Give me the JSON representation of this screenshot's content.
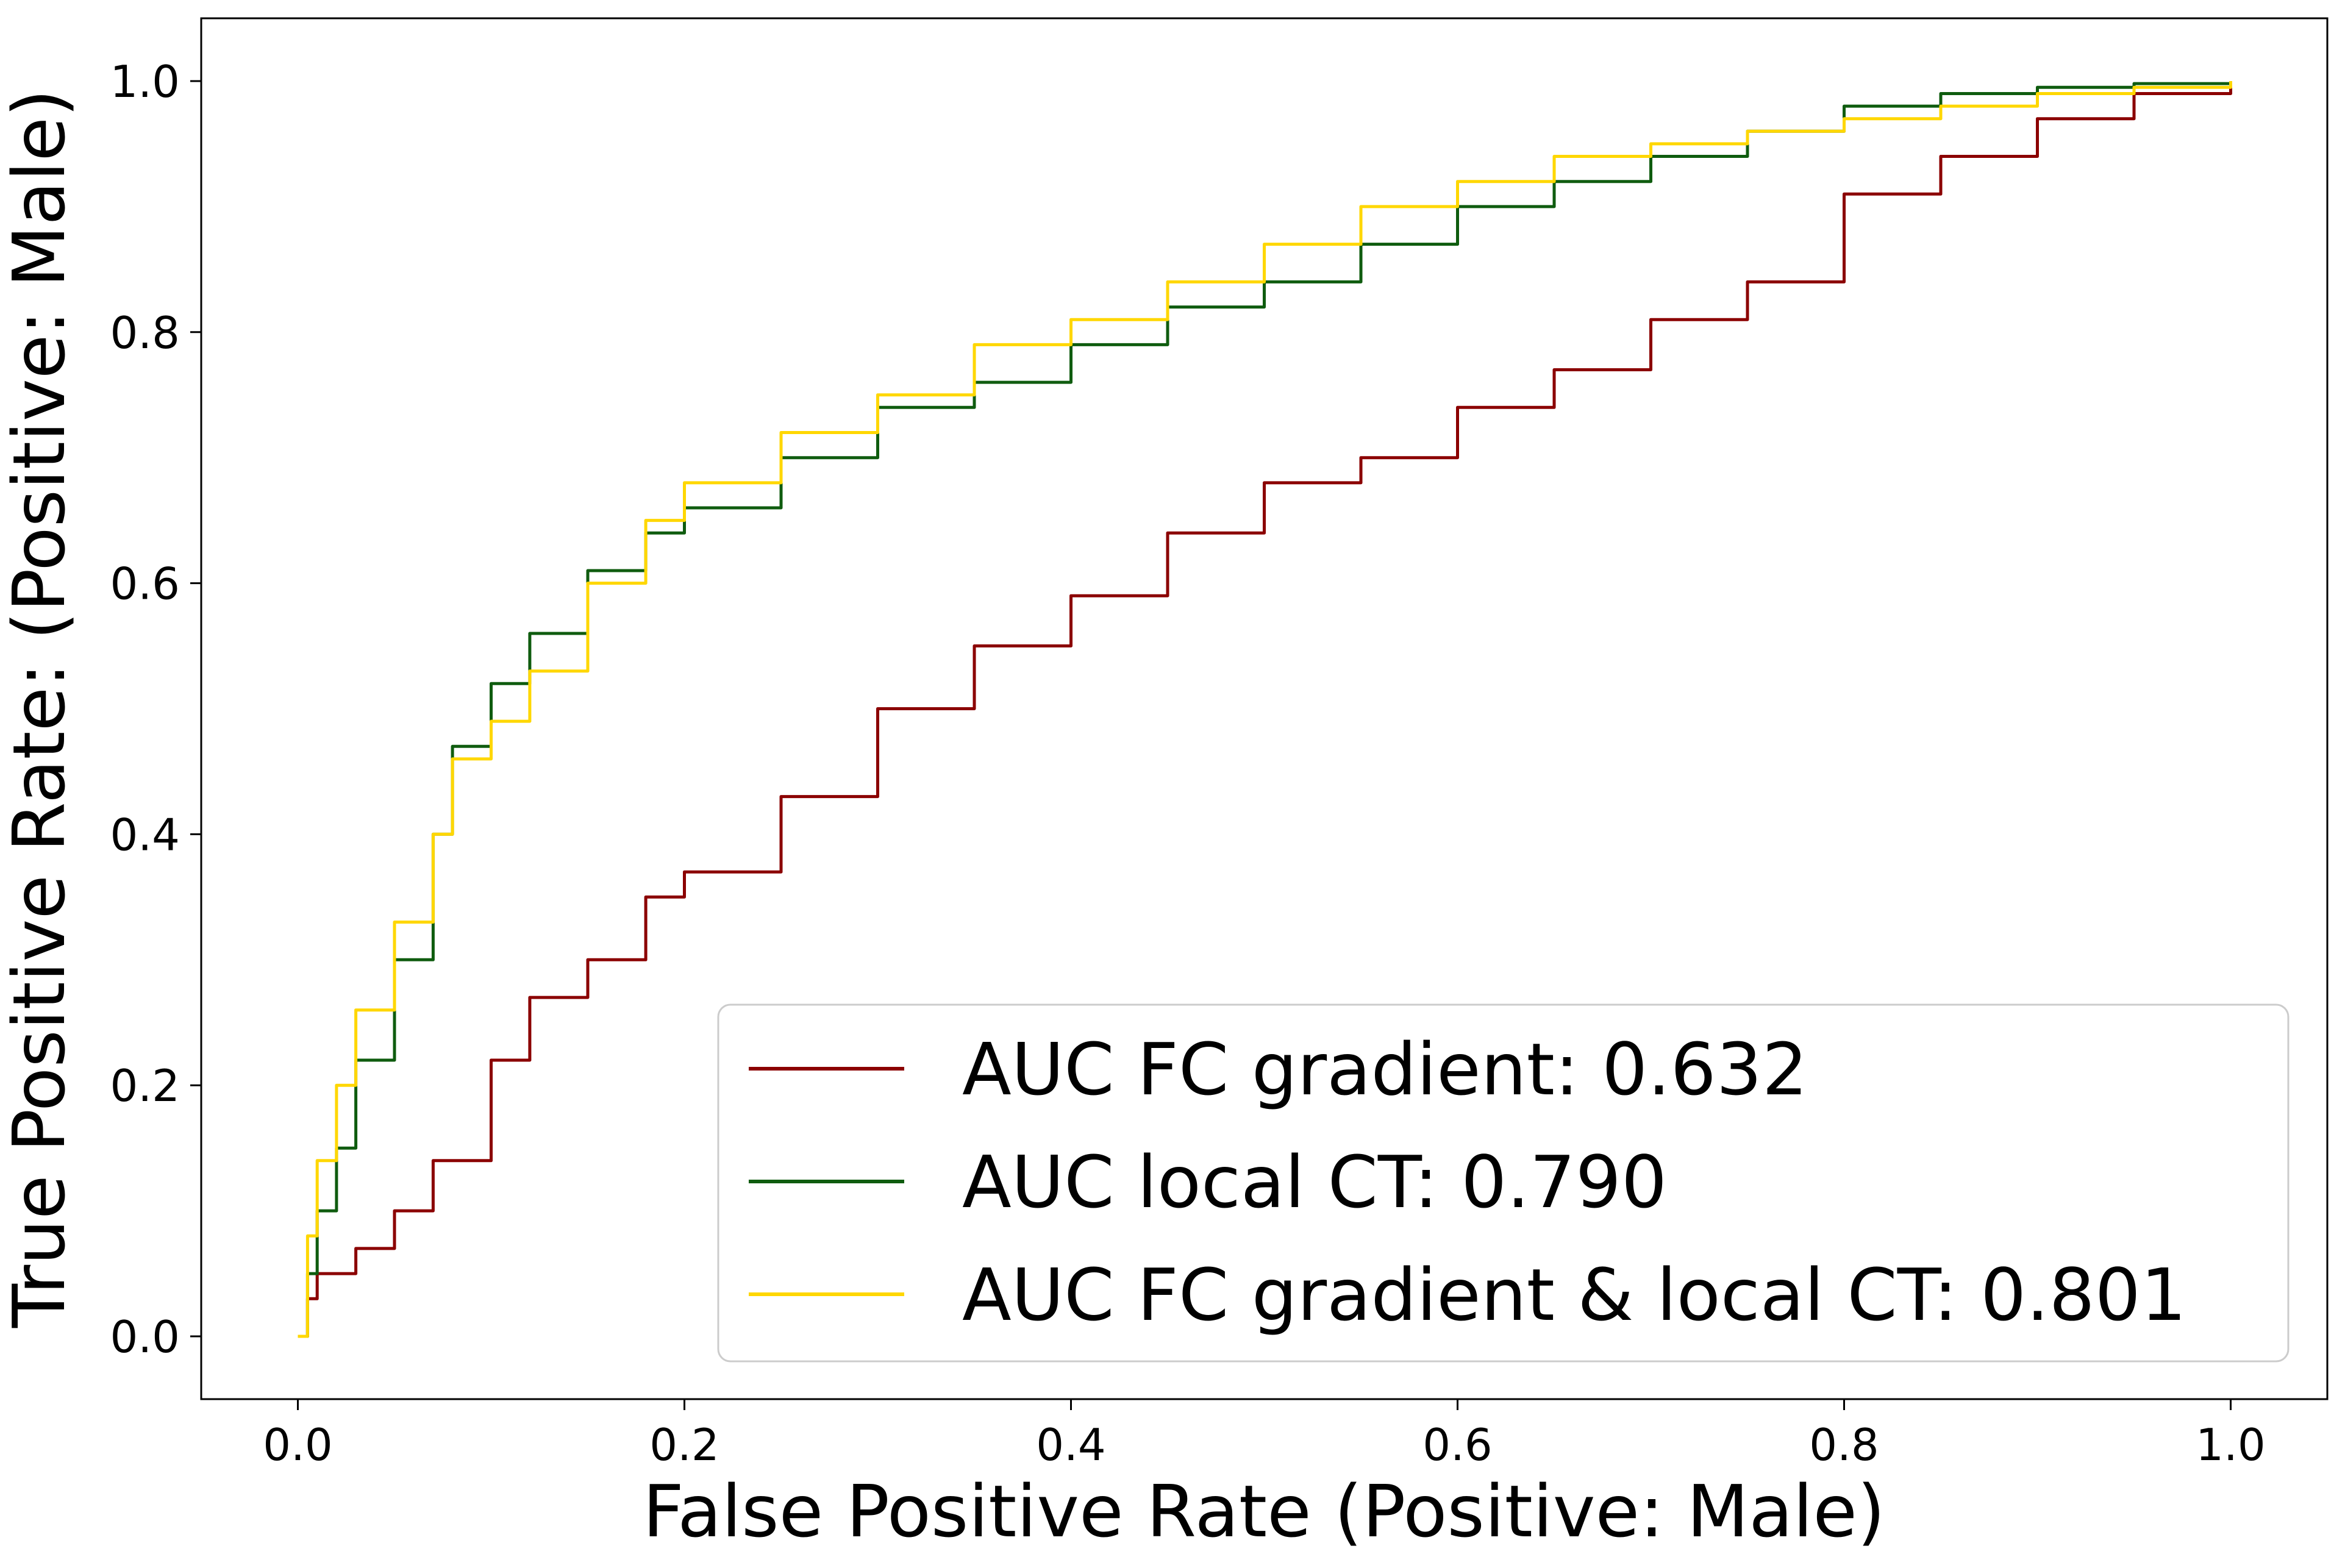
{
  "chart_data": {
    "type": "line",
    "title": "",
    "xlabel": "False Positive Rate (Positive: Male)",
    "ylabel": "True Positive Rate: (Positive: Male)",
    "xlim": [
      -0.05,
      1.05
    ],
    "ylim": [
      -0.05,
      1.05
    ],
    "x_ticks": [
      0.0,
      0.2,
      0.4,
      0.6,
      0.8,
      1.0
    ],
    "y_ticks": [
      0.0,
      0.2,
      0.4,
      0.6,
      0.8,
      1.0
    ],
    "x_tick_labels": [
      "0.0",
      "0.2",
      "0.4",
      "0.6",
      "0.8",
      "1.0"
    ],
    "y_tick_labels": [
      "0.0",
      "0.2",
      "0.4",
      "0.6",
      "0.8",
      "1.0"
    ],
    "grid": false,
    "legend_position": "lower-right",
    "series": [
      {
        "name": "AUC FC gradient: 0.632",
        "color": "#8b0000",
        "x": [
          0.0,
          0.005,
          0.01,
          0.03,
          0.05,
          0.07,
          0.1,
          0.12,
          0.15,
          0.18,
          0.2,
          0.25,
          0.3,
          0.35,
          0.4,
          0.45,
          0.5,
          0.55,
          0.6,
          0.65,
          0.7,
          0.75,
          0.8,
          0.85,
          0.9,
          0.95,
          1.0
        ],
        "y": [
          0.0,
          0.03,
          0.05,
          0.07,
          0.1,
          0.14,
          0.22,
          0.27,
          0.3,
          0.35,
          0.37,
          0.43,
          0.5,
          0.55,
          0.59,
          0.64,
          0.68,
          0.7,
          0.74,
          0.77,
          0.81,
          0.84,
          0.91,
          0.94,
          0.97,
          0.99,
          1.0
        ]
      },
      {
        "name": "AUC local CT: 0.790",
        "color": "#0f5c0f",
        "x": [
          0.0,
          0.005,
          0.01,
          0.02,
          0.03,
          0.05,
          0.07,
          0.08,
          0.1,
          0.12,
          0.15,
          0.18,
          0.2,
          0.25,
          0.3,
          0.35,
          0.4,
          0.45,
          0.5,
          0.55,
          0.6,
          0.65,
          0.7,
          0.75,
          0.8,
          0.85,
          0.9,
          0.95,
          1.0
        ],
        "y": [
          0.0,
          0.05,
          0.1,
          0.15,
          0.22,
          0.3,
          0.4,
          0.47,
          0.52,
          0.56,
          0.61,
          0.64,
          0.66,
          0.7,
          0.74,
          0.76,
          0.79,
          0.82,
          0.84,
          0.87,
          0.9,
          0.92,
          0.94,
          0.96,
          0.98,
          0.99,
          0.995,
          0.998,
          1.0
        ]
      },
      {
        "name": "AUC FC gradient & local CT: 0.801",
        "color": "#ffd700",
        "x": [
          0.0,
          0.005,
          0.01,
          0.02,
          0.03,
          0.05,
          0.07,
          0.08,
          0.1,
          0.12,
          0.15,
          0.18,
          0.2,
          0.25,
          0.3,
          0.35,
          0.4,
          0.45,
          0.5,
          0.55,
          0.6,
          0.65,
          0.7,
          0.75,
          0.8,
          0.85,
          0.9,
          0.95,
          1.0
        ],
        "y": [
          0.0,
          0.08,
          0.14,
          0.2,
          0.26,
          0.33,
          0.4,
          0.46,
          0.49,
          0.53,
          0.6,
          0.65,
          0.68,
          0.72,
          0.75,
          0.79,
          0.81,
          0.84,
          0.87,
          0.9,
          0.92,
          0.94,
          0.95,
          0.96,
          0.97,
          0.98,
          0.99,
          0.995,
          1.0
        ]
      }
    ]
  }
}
